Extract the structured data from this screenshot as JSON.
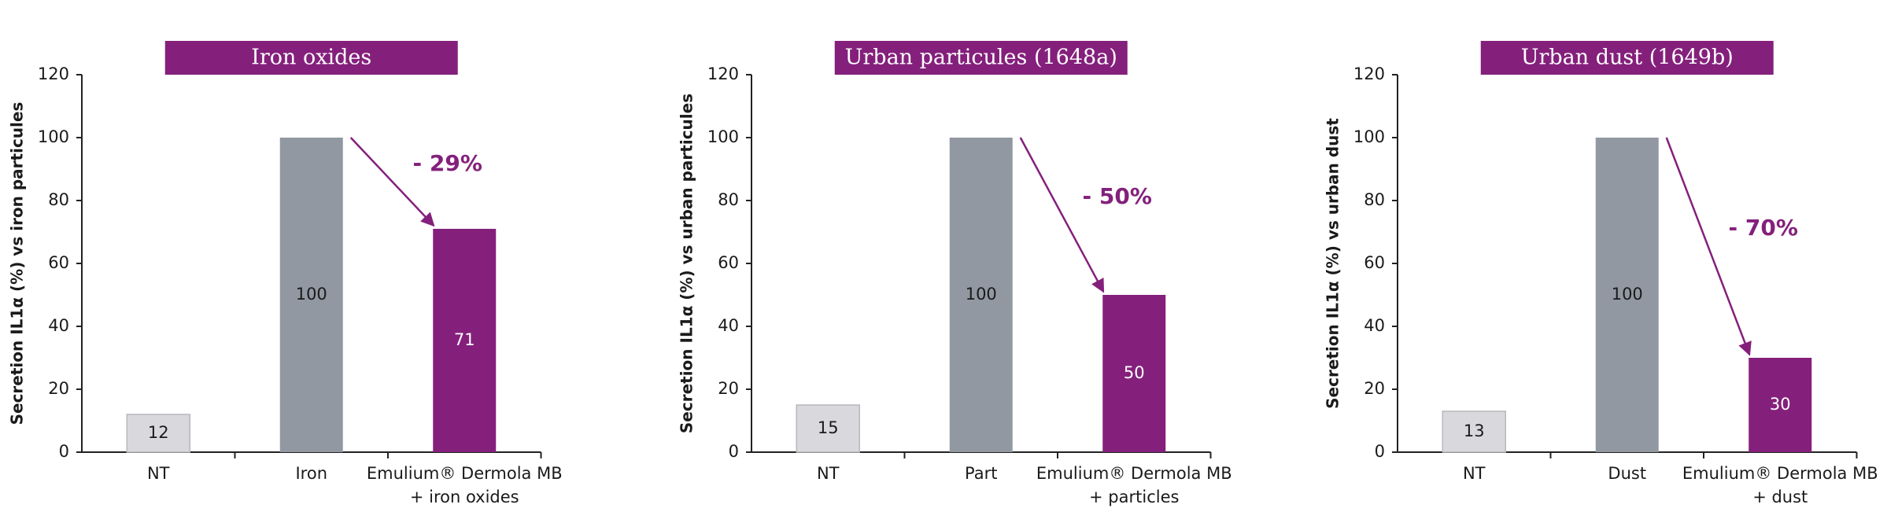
{
  "chart_data": [
    {
      "type": "bar",
      "title": "Iron oxides",
      "y_label": "Secretion IL1α (%) vs iron particules",
      "categories": [
        "NT",
        "Iron",
        "Emulium® Dermola MB\n+ iron oxides"
      ],
      "values": [
        12,
        100,
        71
      ],
      "colors": [
        "#d9d9dd",
        "#9198a1",
        "#84207c"
      ],
      "annotation": "- 29%",
      "ylim": [
        0,
        120
      ],
      "yticks": [
        0,
        20,
        40,
        60,
        80,
        100,
        120
      ]
    },
    {
      "type": "bar",
      "title": "Urban particules (1648a)",
      "y_label": "Secretion IL1α (%) vs urban particules",
      "categories": [
        "NT",
        "Part",
        "Emulium® Dermola MB\n+ particles"
      ],
      "values": [
        15,
        100,
        50
      ],
      "colors": [
        "#d9d9dd",
        "#9198a1",
        "#84207c"
      ],
      "annotation": "- 50%",
      "ylim": [
        0,
        120
      ],
      "yticks": [
        0,
        20,
        40,
        60,
        80,
        100,
        120
      ]
    },
    {
      "type": "bar",
      "title": "Urban dust (1649b)",
      "y_label": "Secretion IL1α (%) vs urban dust",
      "categories": [
        "NT",
        "Dust",
        "Emulium® Dermola MB\n+ dust"
      ],
      "values": [
        13,
        100,
        30
      ],
      "colors": [
        "#d9d9dd",
        "#9198a1",
        "#84207c"
      ],
      "annotation": "- 70%",
      "ylim": [
        0,
        120
      ],
      "yticks": [
        0,
        20,
        40,
        60,
        80,
        100,
        120
      ]
    }
  ]
}
